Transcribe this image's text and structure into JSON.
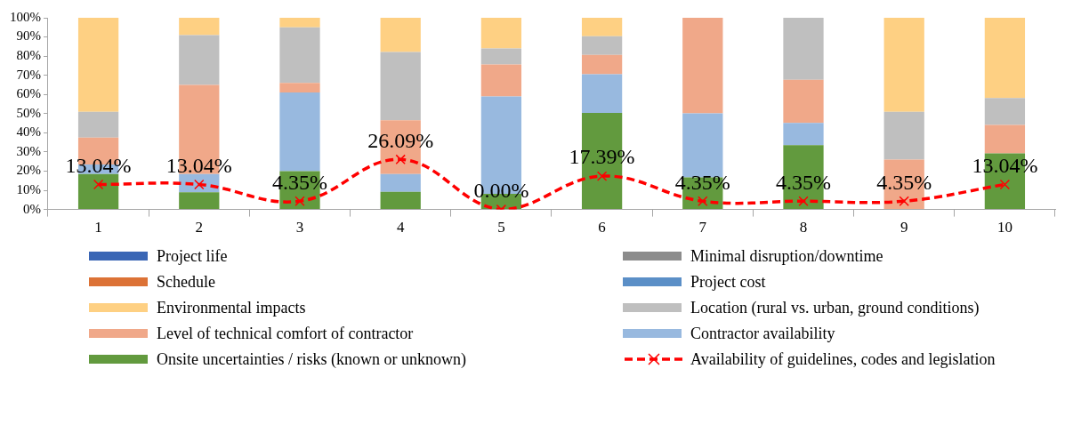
{
  "chart_data": {
    "type": "bar",
    "stacked": true,
    "categories": [
      "1",
      "2",
      "3",
      "4",
      "5",
      "6",
      "7",
      "8",
      "9",
      "10"
    ],
    "ylim": [
      0,
      100
    ],
    "yticks": [
      {
        "value": 0,
        "label": "0%"
      },
      {
        "value": 10,
        "label": "10%"
      },
      {
        "value": 20,
        "label": "20%"
      },
      {
        "value": 30,
        "label": "30%"
      },
      {
        "value": 40,
        "label": "40%"
      },
      {
        "value": 50,
        "label": "50%"
      },
      {
        "value": 60,
        "label": "60%"
      },
      {
        "value": 70,
        "label": "70%"
      },
      {
        "value": 80,
        "label": "80%"
      },
      {
        "value": 90,
        "label": "90%"
      },
      {
        "value": 100,
        "label": "100%"
      }
    ],
    "grid": false,
    "legend": "bottom",
    "series": [
      {
        "name": "Availability of guidelines, codes and legislation",
        "type": "line",
        "color": "#ff0000",
        "marker": "cross",
        "line_style": "dashed",
        "values": [
          13.04,
          13.04,
          4.35,
          26.09,
          0,
          17.39,
          4.35,
          4.35,
          4.35,
          13.04
        ],
        "value_labels": [
          "13.04%",
          "13.04%",
          "4.35%",
          "26.09%",
          "0.00%",
          "17.39%",
          "4.35%",
          "4.35%",
          "4.35%",
          "13.04%"
        ]
      },
      {
        "name": "Onsite uncertainties / risks (known or unknown)",
        "color": "#629a3e",
        "values": [
          18.5,
          9,
          20,
          9.2,
          8.2,
          50.4,
          16.8,
          33.6,
          0,
          29.3
        ]
      },
      {
        "name": "Contractor availability",
        "color": "#98b9df",
        "values": [
          5,
          9.5,
          41,
          9.3,
          50.8,
          20.1,
          33.3,
          11.5,
          0,
          0
        ]
      },
      {
        "name": "Level of technical comfort of contractor",
        "color": "#f0a889",
        "values": [
          14,
          46.5,
          5,
          28,
          16.7,
          10.1,
          49.9,
          22.6,
          26,
          14.8
        ]
      },
      {
        "name": "Location (rural vs. urban, ground conditions)",
        "color": "#bfbfbf",
        "values": [
          13.5,
          26,
          29,
          35.7,
          8.3,
          9.8,
          0,
          32.3,
          24.9,
          14
        ]
      },
      {
        "name": "Environmental impacts",
        "color": "#fed083",
        "values": [
          49,
          9,
          5,
          17.8,
          16,
          9.6,
          0,
          0,
          49.1,
          41.9
        ]
      },
      {
        "name": "Project cost",
        "color": "#5b8fc7",
        "values": [
          0,
          0,
          0,
          0,
          0,
          0,
          0,
          0,
          0,
          0
        ]
      },
      {
        "name": "Schedule",
        "color": "#dc7236",
        "values": [
          0,
          0,
          0,
          0,
          0,
          0,
          0,
          0,
          0,
          0
        ]
      },
      {
        "name": "Minimal disruption/downtime",
        "color": "#8c8c8c",
        "values": [
          0,
          0,
          0,
          0,
          0,
          0,
          0,
          0,
          0,
          0
        ]
      },
      {
        "name": "Project life",
        "color": "#3a66b5",
        "values": [
          0,
          0,
          0,
          0,
          0,
          0,
          0,
          0,
          0,
          0
        ]
      }
    ]
  }
}
